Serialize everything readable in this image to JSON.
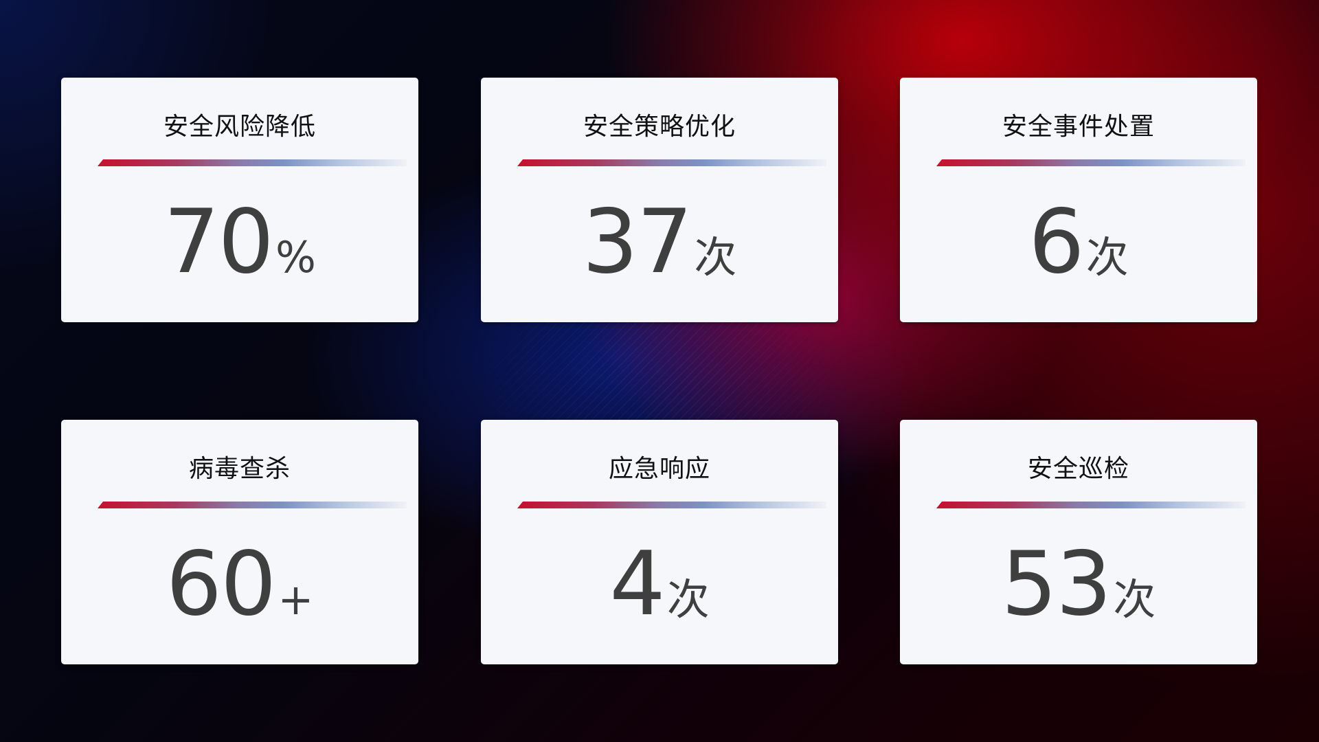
{
  "colors": {
    "accent_red": "#c8102e",
    "accent_blue": "#7d92c4",
    "card_bg": "#f5f7fb",
    "value_text": "#3f3f3f"
  },
  "cards": [
    {
      "title": "安全风险降低",
      "value": "70",
      "unit": "%"
    },
    {
      "title": "安全策略优化",
      "value": "37",
      "unit": "次"
    },
    {
      "title": "安全事件处置",
      "value": "6",
      "unit": "次"
    },
    {
      "title": "病毒查杀",
      "value": "60",
      "unit": "+"
    },
    {
      "title": "应急响应",
      "value": "4",
      "unit": "次"
    },
    {
      "title": "安全巡检",
      "value": "53",
      "unit": "次"
    }
  ]
}
